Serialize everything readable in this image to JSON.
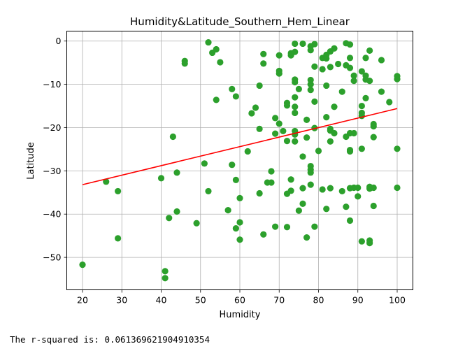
{
  "output": {
    "r_squared_text": "The r-squared is: 0.061369621904910354"
  },
  "chart_data": {
    "type": "scatter",
    "title": "Humidity&Latitude_Southern_Hem_Linear",
    "xlabel": "Humidity",
    "ylabel": "Latitude",
    "xlim": [
      16.0,
      104.0
    ],
    "ylim": [
      -57.5,
      2.3
    ],
    "xticks": [
      20,
      30,
      40,
      50,
      60,
      70,
      80,
      90,
      100
    ],
    "yticks": [
      0,
      -10,
      -20,
      -30,
      -40,
      -50
    ],
    "grid": true,
    "point_color": "#2ca02c",
    "line_color": "#ff0000",
    "regression_line": {
      "x": [
        20,
        100
      ],
      "y": [
        -33.2,
        -15.6
      ]
    },
    "points": [
      [
        20,
        -51.7
      ],
      [
        26,
        -32.5
      ],
      [
        29,
        -34.7
      ],
      [
        29,
        -45.6
      ],
      [
        40,
        -31.7
      ],
      [
        41,
        -53.2
      ],
      [
        41,
        -54.8
      ],
      [
        42,
        -40.9
      ],
      [
        43,
        -22.1
      ],
      [
        44,
        -30.4
      ],
      [
        44,
        -39.4
      ],
      [
        46,
        -4.6
      ],
      [
        46,
        -5.2
      ],
      [
        49,
        -42.1
      ],
      [
        51,
        -28.3
      ],
      [
        52,
        -34.7
      ],
      [
        52,
        -0.3
      ],
      [
        53,
        -2.7
      ],
      [
        54,
        -1.9
      ],
      [
        54,
        -13.6
      ],
      [
        55,
        -4.9
      ],
      [
        57,
        -39.1
      ],
      [
        58,
        -11.1
      ],
      [
        58,
        -28.6
      ],
      [
        59,
        -12.8
      ],
      [
        59,
        -32.1
      ],
      [
        59,
        -43.3
      ],
      [
        60,
        -36.3
      ],
      [
        60,
        -41.9
      ],
      [
        60,
        -45.9
      ],
      [
        62,
        -25.5
      ],
      [
        63,
        -16.7
      ],
      [
        64,
        -15.4
      ],
      [
        65,
        -10.3
      ],
      [
        65,
        -20.3
      ],
      [
        65,
        -35.2
      ],
      [
        66,
        -44.7
      ],
      [
        66,
        -3.0
      ],
      [
        66,
        -5.2
      ],
      [
        67,
        -32.7
      ],
      [
        68,
        -30.1
      ],
      [
        68,
        -32.7
      ],
      [
        69,
        -17.8
      ],
      [
        69,
        -21.4
      ],
      [
        69,
        -42.9
      ],
      [
        70,
        -3.3
      ],
      [
        70,
        -6.9
      ],
      [
        70,
        -7.5
      ],
      [
        70,
        -19.1
      ],
      [
        71,
        -20.8
      ],
      [
        72,
        -14.3
      ],
      [
        72,
        -14.9
      ],
      [
        72,
        -23.1
      ],
      [
        72,
        -35.3
      ],
      [
        72,
        -43.0
      ],
      [
        73,
        -2.8
      ],
      [
        73,
        -3.3
      ],
      [
        73,
        -32.0
      ],
      [
        73,
        -34.6
      ],
      [
        74,
        -0.6
      ],
      [
        74,
        -2.5
      ],
      [
        74,
        -8.9
      ],
      [
        74,
        -9.5
      ],
      [
        74,
        -13.0
      ],
      [
        74,
        -15.2
      ],
      [
        74,
        -16.6
      ],
      [
        74,
        -20.8
      ],
      [
        74,
        -21.6
      ],
      [
        74,
        -23.2
      ],
      [
        75,
        -11.1
      ],
      [
        75,
        -39.2
      ],
      [
        76,
        -0.6
      ],
      [
        76,
        -26.7
      ],
      [
        76,
        -34.0
      ],
      [
        76,
        -37.6
      ],
      [
        77,
        -18.2
      ],
      [
        77,
        -22.3
      ],
      [
        77,
        -45.4
      ],
      [
        78,
        -1.2
      ],
      [
        78,
        -2.1
      ],
      [
        78,
        -9.0
      ],
      [
        78,
        -10.0
      ],
      [
        78,
        -11.3
      ],
      [
        78,
        -28.9
      ],
      [
        78,
        -29.7
      ],
      [
        78,
        -30.4
      ],
      [
        78,
        -33.2
      ],
      [
        79,
        -0.7
      ],
      [
        79,
        -5.9
      ],
      [
        79,
        -14.0
      ],
      [
        79,
        -20.1
      ],
      [
        79,
        -42.9
      ],
      [
        80,
        -25.4
      ],
      [
        81,
        -3.9
      ],
      [
        81,
        -6.5
      ],
      [
        81,
        -34.3
      ],
      [
        82,
        -3.2
      ],
      [
        82,
        -4.0
      ],
      [
        82,
        -10.3
      ],
      [
        82,
        -17.6
      ],
      [
        82,
        -38.8
      ],
      [
        83,
        -2.4
      ],
      [
        83,
        -6.0
      ],
      [
        83,
        -20.3
      ],
      [
        83,
        -20.7
      ],
      [
        83,
        -23.2
      ],
      [
        83,
        -34.0
      ],
      [
        84,
        -1.7
      ],
      [
        84,
        -15.2
      ],
      [
        84,
        -21.3
      ],
      [
        85,
        -5.3
      ],
      [
        86,
        -11.7
      ],
      [
        86,
        -34.7
      ],
      [
        87,
        -0.5
      ],
      [
        87,
        -5.6
      ],
      [
        87,
        -22.1
      ],
      [
        87,
        -38.3
      ],
      [
        88,
        -0.8
      ],
      [
        88,
        -3.9
      ],
      [
        88,
        -6.2
      ],
      [
        88,
        -21.3
      ],
      [
        88,
        -25.2
      ],
      [
        88,
        -25.5
      ],
      [
        88,
        -34.0
      ],
      [
        88,
        -41.5
      ],
      [
        89,
        -8.0
      ],
      [
        89,
        -9.2
      ],
      [
        89,
        -21.3
      ],
      [
        89,
        -33.9
      ],
      [
        90,
        -33.9
      ],
      [
        90,
        -35.9
      ],
      [
        91,
        -7.0
      ],
      [
        91,
        -15.0
      ],
      [
        91,
        -16.6
      ],
      [
        91,
        -17.3
      ],
      [
        91,
        -24.9
      ],
      [
        91,
        -46.3
      ],
      [
        92,
        -3.9
      ],
      [
        92,
        -8.0
      ],
      [
        92,
        -8.9
      ],
      [
        92,
        -13.2
      ],
      [
        93,
        -2.2
      ],
      [
        93,
        -9.2
      ],
      [
        93,
        -33.7
      ],
      [
        93,
        -34.1
      ],
      [
        93,
        -46.1
      ],
      [
        93,
        -46.7
      ],
      [
        94,
        -19.2
      ],
      [
        94,
        -19.7
      ],
      [
        94,
        -22.2
      ],
      [
        94,
        -33.9
      ],
      [
        94,
        -38.1
      ],
      [
        96,
        -4.4
      ],
      [
        96,
        -11.7
      ],
      [
        98,
        -14.1
      ],
      [
        100,
        -8.1
      ],
      [
        100,
        -8.8
      ],
      [
        100,
        -24.9
      ],
      [
        100,
        -33.9
      ]
    ]
  }
}
